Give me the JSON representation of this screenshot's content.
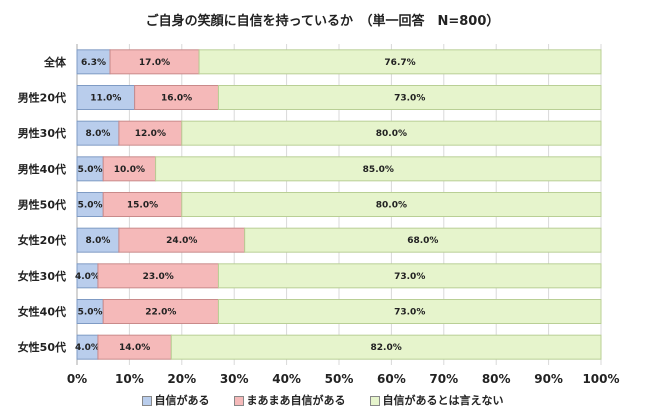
{
  "chart_data": {
    "type": "bar",
    "orientation": "horizontal",
    "stacked": true,
    "title": "ご自身の笑顔に自信を持っているか　（単一回答　N=800）",
    "categories": [
      "全体",
      "男性20代",
      "男性30代",
      "男性40代",
      "男性50代",
      "女性20代",
      "女性30代",
      "女性40代",
      "女性50代"
    ],
    "series": [
      {
        "name": "自信がある",
        "color": "#b9cdec",
        "values": [
          6.3,
          11.0,
          8.0,
          5.0,
          5.0,
          8.0,
          4.0,
          5.0,
          4.0
        ]
      },
      {
        "name": "まあまあ自信がある",
        "color": "#f5b9b9",
        "values": [
          17.0,
          16.0,
          12.0,
          10.0,
          15.0,
          24.0,
          23.0,
          22.0,
          14.0
        ]
      },
      {
        "name": "自信があるとは言えない",
        "color": "#e6f4cc",
        "values": [
          76.7,
          73.0,
          80.0,
          85.0,
          80.0,
          68.0,
          73.0,
          73.0,
          82.0
        ]
      }
    ],
    "xlim": [
      0,
      100
    ],
    "xticks": [
      "0%",
      "10%",
      "20%",
      "30%",
      "40%",
      "50%",
      "60%",
      "70%",
      "80%",
      "90%",
      "100%"
    ],
    "grid": true,
    "legend": "bottom"
  }
}
